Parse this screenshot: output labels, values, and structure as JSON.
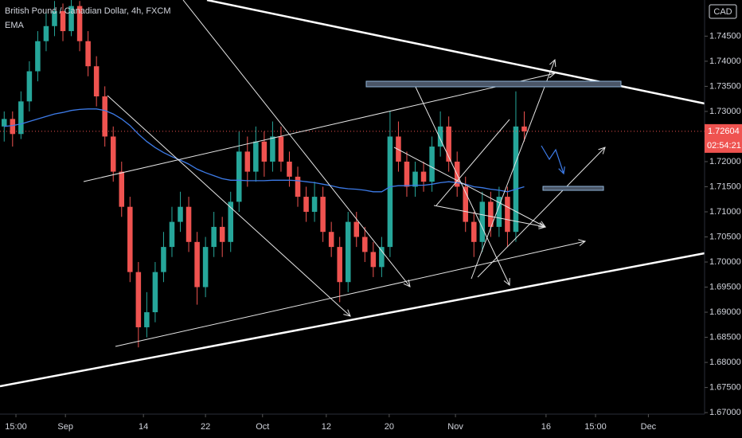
{
  "chart_data": {
    "type": "candlestick",
    "title": "British Pound / Canadian Dollar, 4h, FXCM",
    "indicator": "EMA",
    "currency": "CAD",
    "countdown": "02:54:21",
    "up_color": "#26a69a",
    "down_color": "#ef5350",
    "ohlc": [
      [
        1.727,
        1.73,
        1.724,
        1.7285
      ],
      [
        1.7285,
        1.73,
        1.723,
        1.7255
      ],
      [
        1.7255,
        1.734,
        1.7245,
        1.732
      ],
      [
        1.732,
        1.74,
        1.73,
        1.738
      ],
      [
        1.738,
        1.746,
        1.736,
        1.744
      ],
      [
        1.744,
        1.75,
        1.742,
        1.747
      ],
      [
        1.747,
        1.752,
        1.745,
        1.75
      ],
      [
        1.75,
        1.7515,
        1.744,
        1.746
      ],
      [
        1.746,
        1.7545,
        1.745,
        1.751
      ],
      [
        1.751,
        1.752,
        1.742,
        1.744
      ],
      [
        1.744,
        1.746,
        1.737,
        1.739
      ],
      [
        1.739,
        1.741,
        1.731,
        1.733
      ],
      [
        1.733,
        1.735,
        1.723,
        1.725
      ],
      [
        1.725,
        1.727,
        1.716,
        1.718
      ],
      [
        1.718,
        1.72,
        1.709,
        1.711
      ],
      [
        1.711,
        1.713,
        1.696,
        1.698
      ],
      [
        1.698,
        1.7,
        1.683,
        1.687
      ],
      [
        1.687,
        1.694,
        1.685,
        1.69
      ],
      [
        1.69,
        1.7,
        1.688,
        1.698
      ],
      [
        1.698,
        1.706,
        1.696,
        1.703
      ],
      [
        1.703,
        1.711,
        1.701,
        1.708
      ],
      [
        1.708,
        1.714,
        1.706,
        1.711
      ],
      [
        1.711,
        1.713,
        1.702,
        1.704
      ],
      [
        1.704,
        1.706,
        1.6915,
        1.695
      ],
      [
        1.695,
        1.705,
        1.693,
        1.703
      ],
      [
        1.703,
        1.71,
        1.701,
        1.707
      ],
      [
        1.707,
        1.709,
        1.701,
        1.704
      ],
      [
        1.704,
        1.714,
        1.702,
        1.712
      ],
      [
        1.712,
        1.726,
        1.71,
        1.722
      ],
      [
        1.722,
        1.725,
        1.715,
        1.718
      ],
      [
        1.718,
        1.727,
        1.716,
        1.724
      ],
      [
        1.724,
        1.726,
        1.717,
        1.72
      ],
      [
        1.72,
        1.728,
        1.718,
        1.725
      ],
      [
        1.725,
        1.727,
        1.718,
        1.72
      ],
      [
        1.72,
        1.722,
        1.715,
        1.717
      ],
      [
        1.717,
        1.719,
        1.711,
        1.713
      ],
      [
        1.713,
        1.715,
        1.708,
        1.71
      ],
      [
        1.71,
        1.716,
        1.708,
        1.713
      ],
      [
        1.713,
        1.715,
        1.704,
        1.706
      ],
      [
        1.706,
        1.708,
        1.701,
        1.703
      ],
      [
        1.703,
        1.705,
        1.692,
        1.696
      ],
      [
        1.696,
        1.71,
        1.694,
        1.708
      ],
      [
        1.708,
        1.71,
        1.703,
        1.705
      ],
      [
        1.705,
        1.707,
        1.7,
        1.702
      ],
      [
        1.702,
        1.704,
        1.697,
        1.699
      ],
      [
        1.699,
        1.705,
        1.697,
        1.703
      ],
      [
        1.703,
        1.73,
        1.701,
        1.725
      ],
      [
        1.725,
        1.728,
        1.718,
        1.72
      ],
      [
        1.72,
        1.722,
        1.713,
        1.715
      ],
      [
        1.715,
        1.72,
        1.713,
        1.718
      ],
      [
        1.718,
        1.72,
        1.714,
        1.716
      ],
      [
        1.716,
        1.725,
        1.714,
        1.723
      ],
      [
        1.723,
        1.73,
        1.721,
        1.727
      ],
      [
        1.727,
        1.729,
        1.718,
        1.72
      ],
      [
        1.72,
        1.722,
        1.713,
        1.715
      ],
      [
        1.715,
        1.717,
        1.706,
        1.708
      ],
      [
        1.708,
        1.71,
        1.701,
        1.704
      ],
      [
        1.704,
        1.714,
        1.702,
        1.712
      ],
      [
        1.712,
        1.714,
        1.705,
        1.707
      ],
      [
        1.707,
        1.715,
        1.705,
        1.713
      ],
      [
        1.713,
        1.715,
        1.703,
        1.706
      ],
      [
        1.706,
        1.734,
        1.704,
        1.727
      ],
      [
        1.727,
        1.73,
        1.724,
        1.72604
      ]
    ],
    "ema": {
      "color": "#3d7be8",
      "values": [
        1.727,
        1.7272,
        1.7275,
        1.728,
        1.7285,
        1.729,
        1.7295,
        1.7298,
        1.7302,
        1.7304,
        1.7305,
        1.7305,
        1.7302,
        1.7295,
        1.7285,
        1.7272,
        1.7255,
        1.724,
        1.7228,
        1.7218,
        1.721,
        1.7203,
        1.7195,
        1.7185,
        1.7178,
        1.7172,
        1.7166,
        1.7163,
        1.7163,
        1.7162,
        1.7162,
        1.7162,
        1.7163,
        1.7163,
        1.7163,
        1.7162,
        1.716,
        1.7158,
        1.7155,
        1.7152,
        1.7148,
        1.7146,
        1.7145,
        1.7143,
        1.714,
        1.714,
        1.715,
        1.7152,
        1.7152,
        1.7153,
        1.7153,
        1.7155,
        1.7158,
        1.716,
        1.7158,
        1.7155,
        1.715,
        1.7148,
        1.7145,
        1.7143,
        1.714,
        1.7145,
        1.715
      ]
    },
    "xlim": [
      0,
      84
    ],
    "xticks": [
      {
        "value": 1.9,
        "label": "15:00"
      },
      {
        "value": 7.8,
        "label": "Sep"
      },
      {
        "value": 17.1,
        "label": "14"
      },
      {
        "value": 24.5,
        "label": "22"
      },
      {
        "value": 31.3,
        "label": "Oct"
      },
      {
        "value": 38.9,
        "label": "12"
      },
      {
        "value": 46.4,
        "label": "20"
      },
      {
        "value": 54.3,
        "label": "Nov"
      },
      {
        "value": 65.1,
        "label": "16"
      },
      {
        "value": 71,
        "label": "15:00"
      },
      {
        "value": 77.3,
        "label": "Dec"
      }
    ],
    "ylim": [
      1.6697,
      1.7522
    ],
    "yticks": [
      {
        "value": 1.67,
        "label": "1.67000"
      },
      {
        "value": 1.675,
        "label": "1.67500"
      },
      {
        "value": 1.68,
        "label": "1.68000"
      },
      {
        "value": 1.685,
        "label": "1.68500"
      },
      {
        "value": 1.69,
        "label": "1.69000"
      },
      {
        "value": 1.695,
        "label": "1.69500"
      },
      {
        "value": 1.7,
        "label": "1.70000"
      },
      {
        "value": 1.705,
        "label": "1.70500"
      },
      {
        "value": 1.71,
        "label": "1.71000"
      },
      {
        "value": 1.715,
        "label": "1.71500"
      },
      {
        "value": 1.72,
        "label": "1.72000"
      },
      {
        "value": 1.725,
        "label": "1.72500"
      },
      {
        "value": 1.73,
        "label": "1.73000"
      },
      {
        "value": 1.735,
        "label": "1.73500"
      },
      {
        "value": 1.74,
        "label": "1.74000"
      },
      {
        "value": 1.745,
        "label": "1.74500"
      }
    ]
  }
}
